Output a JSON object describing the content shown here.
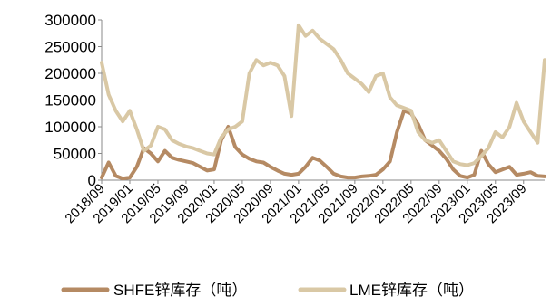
{
  "chart_data": {
    "type": "line",
    "title": "",
    "xlabel": "",
    "ylabel": "",
    "ylim": [
      0,
      300000
    ],
    "yticks": [
      0,
      50000,
      100000,
      150000,
      200000,
      250000,
      300000
    ],
    "x_tick_labels": [
      "2018/09",
      "2019/01",
      "2019/05",
      "2019/09",
      "2020/01",
      "2020/05",
      "2020/09",
      "2021/01",
      "2021/05",
      "2021/09",
      "2022/01",
      "2022/05",
      "2022/09",
      "2023/01",
      "2023/05",
      "2023/09"
    ],
    "grid": false,
    "legend_position": "bottom",
    "x": [
      "2018/09",
      "2018/10",
      "2018/11",
      "2018/12",
      "2019/01",
      "2019/02",
      "2019/03",
      "2019/04",
      "2019/05",
      "2019/06",
      "2019/07",
      "2019/08",
      "2019/09",
      "2019/10",
      "2019/11",
      "2019/12",
      "2020/01",
      "2020/02",
      "2020/03",
      "2020/04",
      "2020/05",
      "2020/06",
      "2020/07",
      "2020/08",
      "2020/09",
      "2020/10",
      "2020/11",
      "2020/12",
      "2021/01",
      "2021/02",
      "2021/03",
      "2021/04",
      "2021/05",
      "2021/06",
      "2021/07",
      "2021/08",
      "2021/09",
      "2021/10",
      "2021/11",
      "2021/12",
      "2022/01",
      "2022/02",
      "2022/03",
      "2022/04",
      "2022/05",
      "2022/06",
      "2022/07",
      "2022/08",
      "2022/09",
      "2022/10",
      "2022/11",
      "2022/12",
      "2023/01",
      "2023/02",
      "2023/03",
      "2023/04",
      "2023/05",
      "2023/06",
      "2023/07",
      "2023/08",
      "2023/09",
      "2023/10",
      "2023/11",
      "2023/12"
    ],
    "series": [
      {
        "name": "SHFE锌库存（吨）",
        "color": "#b58a63",
        "values": [
          5000,
          33000,
          8000,
          3000,
          5000,
          25000,
          60000,
          50000,
          35000,
          55000,
          42000,
          38000,
          35000,
          32000,
          25000,
          18000,
          20000,
          75000,
          100000,
          62000,
          48000,
          40000,
          35000,
          33000,
          25000,
          18000,
          12000,
          10000,
          12000,
          25000,
          42000,
          37000,
          25000,
          12000,
          7000,
          5000,
          5000,
          7000,
          8000,
          10000,
          20000,
          35000,
          90000,
          130000,
          125000,
          105000,
          75000,
          65000,
          55000,
          40000,
          20000,
          8000,
          5000,
          10000,
          55000,
          30000,
          15000,
          20000,
          25000,
          10000,
          12000,
          15000,
          8000,
          7000
        ]
      },
      {
        "name": "LME锌库存（吨）",
        "color": "#d9c8a5",
        "values": [
          220000,
          160000,
          130000,
          110000,
          130000,
          95000,
          55000,
          65000,
          100000,
          95000,
          75000,
          68000,
          63000,
          60000,
          55000,
          50000,
          48000,
          80000,
          95000,
          100000,
          110000,
          200000,
          225000,
          215000,
          220000,
          215000,
          195000,
          120000,
          290000,
          270000,
          280000,
          265000,
          255000,
          245000,
          225000,
          200000,
          190000,
          180000,
          165000,
          195000,
          200000,
          155000,
          140000,
          135000,
          130000,
          90000,
          75000,
          70000,
          75000,
          55000,
          35000,
          30000,
          28000,
          32000,
          45000,
          60000,
          90000,
          80000,
          100000,
          145000,
          110000,
          90000,
          70000,
          225000
        ]
      }
    ]
  }
}
